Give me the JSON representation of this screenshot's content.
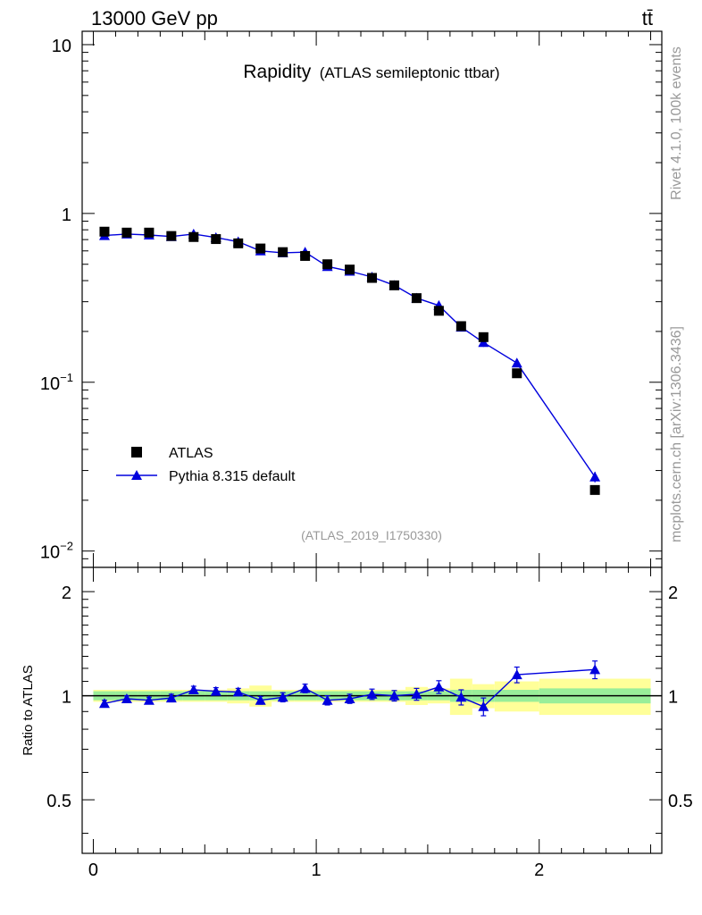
{
  "header": {
    "energy_label": "13000 GeV pp",
    "process_label": "tt̄"
  },
  "side_labels": {
    "rivet": "Rivet 4.1.0,  100k events",
    "mcplots": "mcplots.cern.ch [arXiv:1306.3436]"
  },
  "chart_data": [
    {
      "type": "scatter",
      "title": "Rapidity",
      "subtitle": "(ATLAS semileptonic ttbar)",
      "analysis_tag": "(ATLAS_2019_I1750330)",
      "yscale": "log",
      "ylim": [
        0.008,
        12
      ],
      "xlim": [
        -0.05,
        2.55
      ],
      "y_ticks": [
        {
          "value": 10,
          "label": "10"
        },
        {
          "value": 1,
          "label": "1"
        },
        {
          "value": 0.1,
          "base": "10",
          "exp": "−1"
        },
        {
          "value": 0.01,
          "base": "10",
          "exp": "−2"
        }
      ],
      "legend_position": "bottom-left",
      "legend": [
        {
          "name": "ATLAS",
          "marker": "square",
          "color": "#000000"
        },
        {
          "name": "Pythia 8.315 default",
          "marker": "triangle",
          "color": "#0000dd"
        }
      ],
      "series": [
        {
          "name": "ATLAS",
          "x": [
            0.05,
            0.15,
            0.25,
            0.35,
            0.45,
            0.55,
            0.65,
            0.75,
            0.85,
            0.95,
            1.05,
            1.15,
            1.25,
            1.35,
            1.45,
            1.55,
            1.65,
            1.75,
            1.9,
            2.25
          ],
          "values": [
            0.78,
            0.77,
            0.77,
            0.735,
            0.725,
            0.705,
            0.665,
            0.62,
            0.59,
            0.56,
            0.5,
            0.465,
            0.415,
            0.375,
            0.315,
            0.265,
            0.215,
            0.185,
            0.113,
            0.023
          ]
        },
        {
          "name": "Pythia 8.315 default",
          "x": [
            0.05,
            0.15,
            0.25,
            0.35,
            0.45,
            0.55,
            0.65,
            0.75,
            0.85,
            0.95,
            1.05,
            1.15,
            1.25,
            1.35,
            1.45,
            1.55,
            1.65,
            1.75,
            1.9,
            2.25
          ],
          "values": [
            0.74,
            0.755,
            0.745,
            0.73,
            0.755,
            0.72,
            0.68,
            0.6,
            0.585,
            0.59,
            0.485,
            0.455,
            0.42,
            0.375,
            0.315,
            0.285,
            0.212,
            0.172,
            0.13,
            0.0275
          ],
          "errors": [
            0.01,
            0.01,
            0.01,
            0.01,
            0.01,
            0.01,
            0.01,
            0.012,
            0.01,
            0.012,
            0.01,
            0.01,
            0.01,
            0.01,
            0.01,
            0.012,
            0.01,
            0.01,
            0.007,
            0.002
          ]
        }
      ]
    },
    {
      "type": "line",
      "ylabel": "Ratio to ATLAS",
      "xlabel": "",
      "xlim": [
        -0.05,
        2.55
      ],
      "ylim": [
        0.35,
        2.35
      ],
      "x_ticks": [
        {
          "value": 0,
          "label": "0"
        },
        {
          "value": 1,
          "label": "1"
        },
        {
          "value": 2,
          "label": "2"
        }
      ],
      "y_ticks": [
        {
          "value": 2,
          "label": "2"
        },
        {
          "value": 1,
          "label": "1"
        },
        {
          "value": 0.5,
          "label": "0.5"
        }
      ],
      "bins": [
        {
          "lo": 0.0,
          "hi": 0.1,
          "stat": 0.03,
          "total": 0.04
        },
        {
          "lo": 0.1,
          "hi": 0.2,
          "stat": 0.03,
          "total": 0.04
        },
        {
          "lo": 0.2,
          "hi": 0.3,
          "stat": 0.03,
          "total": 0.04
        },
        {
          "lo": 0.3,
          "hi": 0.4,
          "stat": 0.03,
          "total": 0.04
        },
        {
          "lo": 0.4,
          "hi": 0.5,
          "stat": 0.03,
          "total": 0.04
        },
        {
          "lo": 0.5,
          "hi": 0.6,
          "stat": 0.03,
          "total": 0.04
        },
        {
          "lo": 0.6,
          "hi": 0.7,
          "stat": 0.03,
          "total": 0.05
        },
        {
          "lo": 0.7,
          "hi": 0.8,
          "stat": 0.03,
          "total": 0.07
        },
        {
          "lo": 0.8,
          "hi": 0.9,
          "stat": 0.03,
          "total": 0.04
        },
        {
          "lo": 0.9,
          "hi": 1.0,
          "stat": 0.03,
          "total": 0.04
        },
        {
          "lo": 1.0,
          "hi": 1.1,
          "stat": 0.03,
          "total": 0.04
        },
        {
          "lo": 1.1,
          "hi": 1.2,
          "stat": 0.03,
          "total": 0.04
        },
        {
          "lo": 1.2,
          "hi": 1.3,
          "stat": 0.03,
          "total": 0.04
        },
        {
          "lo": 1.3,
          "hi": 1.4,
          "stat": 0.03,
          "total": 0.04
        },
        {
          "lo": 1.4,
          "hi": 1.5,
          "stat": 0.03,
          "total": 0.06
        },
        {
          "lo": 1.5,
          "hi": 1.6,
          "stat": 0.03,
          "total": 0.05
        },
        {
          "lo": 1.6,
          "hi": 1.7,
          "stat": 0.04,
          "total": 0.12
        },
        {
          "lo": 1.7,
          "hi": 1.8,
          "stat": 0.04,
          "total": 0.08
        },
        {
          "lo": 1.8,
          "hi": 2.0,
          "stat": 0.04,
          "total": 0.1
        },
        {
          "lo": 2.0,
          "hi": 2.5,
          "stat": 0.05,
          "total": 0.12
        }
      ],
      "series": [
        {
          "name": "Pythia 8.315 default",
          "x": [
            0.05,
            0.15,
            0.25,
            0.35,
            0.45,
            0.55,
            0.65,
            0.75,
            0.85,
            0.95,
            1.05,
            1.15,
            1.25,
            1.35,
            1.45,
            1.55,
            1.65,
            1.75,
            1.9,
            2.25
          ],
          "values": [
            0.95,
            0.98,
            0.97,
            0.985,
            1.04,
            1.03,
            1.025,
            0.97,
            0.99,
            1.05,
            0.97,
            0.98,
            1.01,
            1.0,
            1.01,
            1.06,
            0.99,
            0.93,
            1.15,
            1.19
          ],
          "errors": [
            0.02,
            0.02,
            0.02,
            0.025,
            0.025,
            0.025,
            0.025,
            0.025,
            0.03,
            0.03,
            0.03,
            0.03,
            0.035,
            0.035,
            0.04,
            0.045,
            0.05,
            0.055,
            0.06,
            0.07
          ]
        }
      ]
    }
  ]
}
